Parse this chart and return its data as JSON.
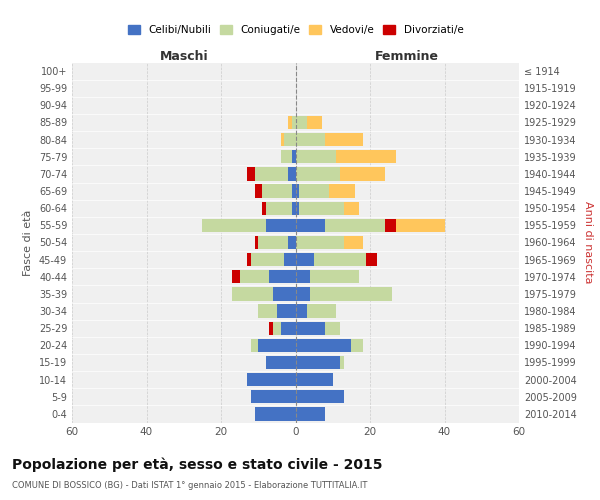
{
  "age_groups": [
    "0-4",
    "5-9",
    "10-14",
    "15-19",
    "20-24",
    "25-29",
    "30-34",
    "35-39",
    "40-44",
    "45-49",
    "50-54",
    "55-59",
    "60-64",
    "65-69",
    "70-74",
    "75-79",
    "80-84",
    "85-89",
    "90-94",
    "95-99",
    "100+"
  ],
  "birth_years": [
    "2010-2014",
    "2005-2009",
    "2000-2004",
    "1995-1999",
    "1990-1994",
    "1985-1989",
    "1980-1984",
    "1975-1979",
    "1970-1974",
    "1965-1969",
    "1960-1964",
    "1955-1959",
    "1950-1954",
    "1945-1949",
    "1940-1944",
    "1935-1939",
    "1930-1934",
    "1925-1929",
    "1920-1924",
    "1915-1919",
    "≤ 1914"
  ],
  "colors": {
    "celibi": "#4472C4",
    "coniugati": "#c5d9a0",
    "vedovi": "#ffc65c",
    "divorziati": "#cc0000"
  },
  "maschi": {
    "celibi": [
      11,
      12,
      13,
      8,
      10,
      4,
      5,
      6,
      7,
      3,
      2,
      8,
      1,
      1,
      2,
      1,
      0,
      0,
      0,
      0,
      0
    ],
    "coniugati": [
      0,
      0,
      0,
      0,
      2,
      2,
      5,
      11,
      8,
      9,
      8,
      17,
      7,
      8,
      9,
      3,
      3,
      1,
      0,
      0,
      0
    ],
    "vedovi": [
      0,
      0,
      0,
      0,
      0,
      0,
      0,
      0,
      0,
      0,
      0,
      0,
      0,
      0,
      0,
      0,
      1,
      1,
      0,
      0,
      0
    ],
    "divorziati": [
      0,
      0,
      0,
      0,
      0,
      1,
      0,
      0,
      2,
      1,
      1,
      0,
      1,
      2,
      2,
      0,
      0,
      0,
      0,
      0,
      0
    ]
  },
  "femmine": {
    "celibi": [
      8,
      13,
      10,
      12,
      15,
      8,
      3,
      4,
      4,
      5,
      0,
      8,
      1,
      1,
      0,
      0,
      0,
      0,
      0,
      0,
      0
    ],
    "coniugati": [
      0,
      0,
      0,
      1,
      3,
      4,
      8,
      22,
      13,
      14,
      13,
      16,
      12,
      8,
      12,
      11,
      8,
      3,
      0,
      0,
      0
    ],
    "vedovi": [
      0,
      0,
      0,
      0,
      0,
      0,
      0,
      0,
      0,
      0,
      5,
      13,
      4,
      7,
      12,
      16,
      10,
      4,
      0,
      0,
      0
    ],
    "divorziati": [
      0,
      0,
      0,
      0,
      0,
      0,
      0,
      0,
      0,
      3,
      0,
      3,
      0,
      0,
      0,
      0,
      0,
      0,
      0,
      0,
      0
    ]
  },
  "xlim": 60,
  "title": "Popolazione per età, sesso e stato civile - 2015",
  "subtitle": "COMUNE DI BOSSICO (BG) - Dati ISTAT 1° gennaio 2015 - Elaborazione TUTTITALIA.IT",
  "xlabel_left": "Maschi",
  "xlabel_right": "Femmine",
  "ylabel_left": "Fasce di età",
  "ylabel_right": "Anni di nascita",
  "legend_labels": [
    "Celibi/Nubili",
    "Coniugati/e",
    "Vedovi/e",
    "Divorziati/e"
  ],
  "background_color": "#f0f0f0"
}
